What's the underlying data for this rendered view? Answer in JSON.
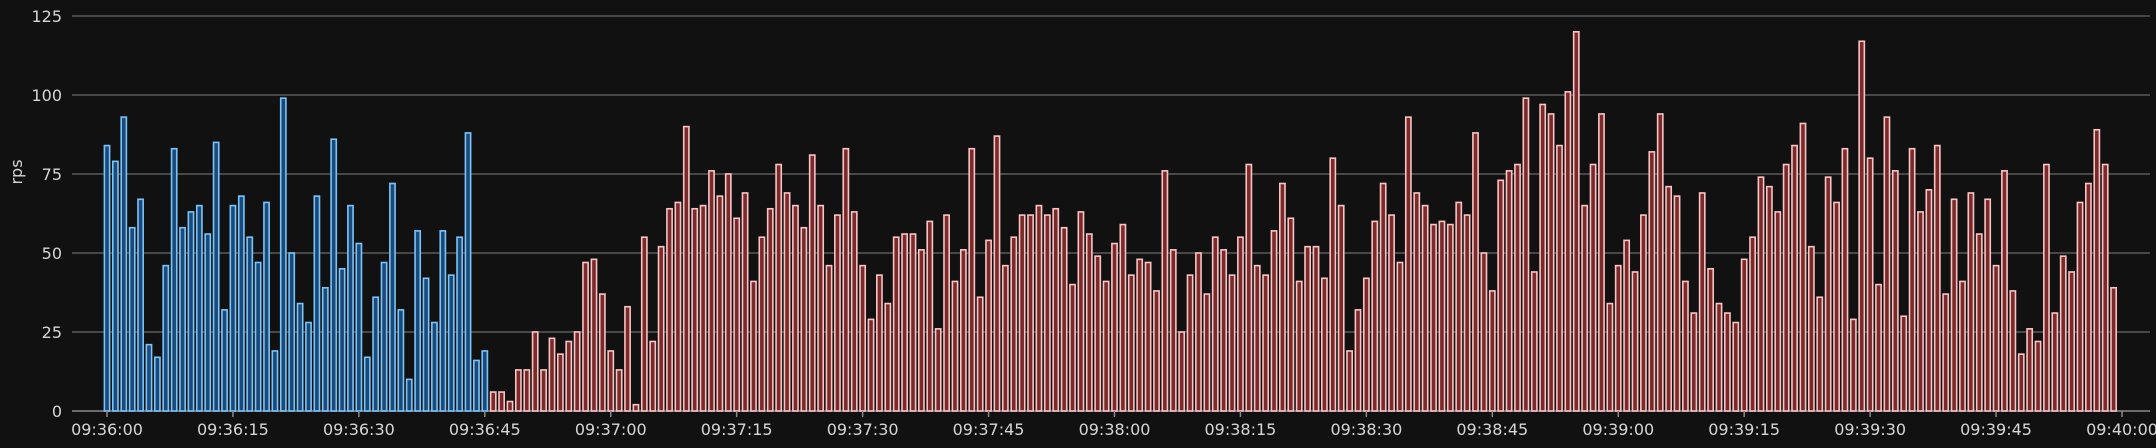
{
  "chart_data": {
    "type": "bar",
    "ylabel": "rps",
    "ylim": [
      0,
      125
    ],
    "yticks": [
      0,
      25,
      50,
      75,
      100,
      125
    ],
    "grid": true,
    "xticks": [
      "09:36:00",
      "09:36:15",
      "09:36:30",
      "09:36:45",
      "09:37:00",
      "09:37:15",
      "09:37:30",
      "09:37:45",
      "09:38:00",
      "09:38:15",
      "09:38:30",
      "09:38:45",
      "09:39:00",
      "09:39:15",
      "09:39:30",
      "09:39:45",
      "09:40:00"
    ],
    "colors": {
      "blue_fill": "#1a4a7a",
      "blue_edge": "#7cc4f8",
      "red_fill": "#7a2a2a",
      "red_edge": "#f8c4c4",
      "grid": "#5a5a5a",
      "text": "#d6d6d6"
    },
    "bar_interval_seconds": 1,
    "series": [
      {
        "color": "blue",
        "start": "09:36:00",
        "values": [
          84,
          79,
          93,
          58,
          67,
          21,
          17,
          46,
          83,
          58,
          63,
          65,
          56,
          85,
          32,
          65,
          68,
          55,
          47,
          66,
          19,
          99,
          50,
          34,
          28,
          68,
          39,
          86,
          45,
          65,
          53,
          17,
          36,
          47,
          72,
          32,
          10,
          57,
          42,
          28,
          57,
          43,
          55,
          88,
          16,
          19
        ]
      },
      {
        "color": "red",
        "start": "09:36:46",
        "values": [
          6,
          6,
          3,
          13,
          13,
          25,
          13,
          23,
          18,
          22,
          25,
          47,
          48,
          37,
          19,
          13,
          33,
          2,
          55,
          22,
          52,
          64,
          66,
          90,
          64,
          65,
          76,
          68,
          75,
          61,
          69,
          41,
          55,
          64,
          78,
          69,
          65,
          58,
          81,
          65,
          46,
          62,
          83,
          63,
          46,
          29,
          43,
          34,
          55,
          56,
          56,
          51,
          60,
          26,
          62,
          41,
          51,
          83,
          36,
          54,
          87,
          46,
          55,
          62,
          62,
          65,
          62,
          64,
          58,
          40,
          63,
          56,
          49,
          41,
          53,
          59,
          43,
          48,
          47,
          38,
          76,
          51,
          25,
          43,
          50,
          37,
          55,
          51,
          43,
          55,
          78,
          46,
          43,
          57,
          72,
          61,
          41,
          52,
          52,
          42,
          80,
          65,
          19,
          32,
          42,
          60,
          72,
          62,
          47,
          93,
          69,
          65,
          59,
          60,
          59,
          66,
          62,
          88,
          50,
          38,
          73,
          76,
          78,
          99,
          44,
          97,
          94,
          84,
          101,
          120,
          65,
          78,
          94,
          34,
          46,
          54,
          44,
          62,
          82,
          94,
          71,
          68,
          41,
          31,
          69,
          45,
          34,
          31,
          28,
          48,
          55,
          74,
          71,
          63,
          78,
          84,
          91,
          52,
          36,
          74,
          66,
          83,
          29,
          117,
          80,
          40,
          93,
          76,
          30,
          83,
          63,
          70,
          84,
          37,
          67,
          41,
          69,
          56,
          67,
          46,
          76,
          38,
          18,
          26,
          22,
          78,
          31,
          49,
          44,
          66,
          72,
          89,
          78,
          39
        ]
      }
    ]
  }
}
